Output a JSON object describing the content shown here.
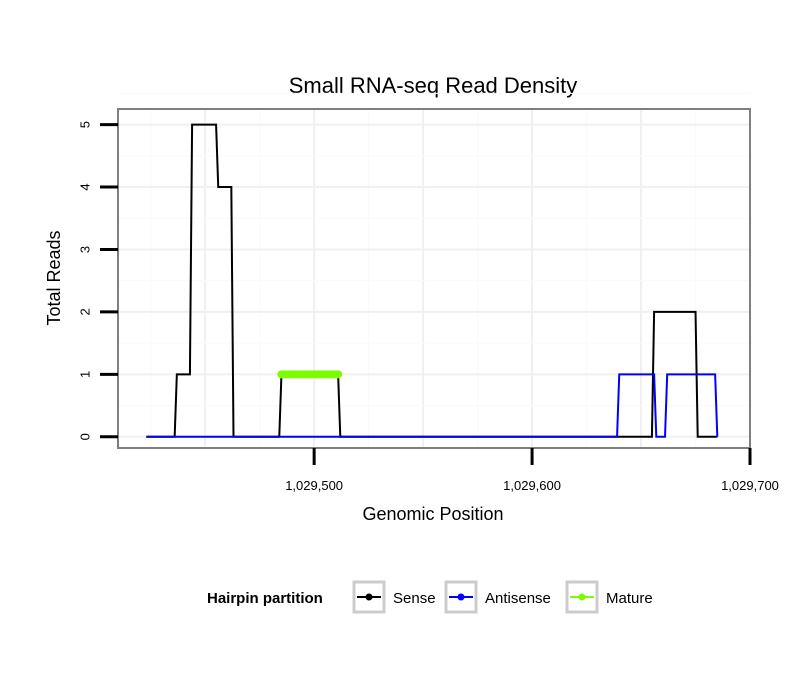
{
  "chart_data": {
    "type": "line",
    "title": "Small RNA-seq Read Density",
    "xlabel": "Genomic Position",
    "ylabel": "Total Reads",
    "xlim": [
      1029410,
      1029700
    ],
    "ylim": [
      -0.18,
      5.25
    ],
    "x_ticks": [
      1029500,
      1029600,
      1029700
    ],
    "x_tick_labels": [
      "1,029,500",
      "1,029,600",
      "1,029,700"
    ],
    "y_ticks": [
      0,
      1,
      2,
      3,
      4,
      5
    ],
    "y_tick_labels": [
      "0",
      "1",
      "2",
      "3",
      "4",
      "5"
    ],
    "grid": true,
    "legend": {
      "title": "Hairpin partition",
      "placement": "bottom",
      "entries": [
        "Sense",
        "Antisense",
        "Mature"
      ]
    },
    "series": [
      {
        "name": "Sense",
        "color": "#000000",
        "markers": false,
        "points": [
          [
            1029423,
            0
          ],
          [
            1029436,
            0
          ],
          [
            1029437,
            1
          ],
          [
            1029443,
            1
          ],
          [
            1029444,
            5
          ],
          [
            1029455,
            5
          ],
          [
            1029456,
            4
          ],
          [
            1029462,
            4
          ],
          [
            1029463,
            0
          ],
          [
            1029484,
            0
          ],
          [
            1029485,
            1
          ],
          [
            1029511,
            1
          ],
          [
            1029512,
            0
          ],
          [
            1029655,
            0
          ],
          [
            1029656,
            2
          ],
          [
            1029675,
            2
          ],
          [
            1029676,
            0
          ],
          [
            1029685,
            0
          ]
        ]
      },
      {
        "name": "Antisense",
        "color": "#0000ff",
        "markers": false,
        "points": [
          [
            1029423,
            0
          ],
          [
            1029639,
            0
          ],
          [
            1029640,
            1
          ],
          [
            1029656,
            1
          ],
          [
            1029657,
            0
          ],
          [
            1029661,
            0
          ],
          [
            1029662,
            1
          ],
          [
            1029684,
            1
          ],
          [
            1029685,
            0
          ]
        ]
      },
      {
        "name": "Mature",
        "color": "#7cfc00",
        "markers": true,
        "points": [
          [
            1029485,
            1
          ],
          [
            1029486,
            1
          ],
          [
            1029487,
            1
          ],
          [
            1029488,
            1
          ],
          [
            1029489,
            1
          ],
          [
            1029490,
            1
          ],
          [
            1029491,
            1
          ],
          [
            1029492,
            1
          ],
          [
            1029493,
            1
          ],
          [
            1029494,
            1
          ],
          [
            1029495,
            1
          ],
          [
            1029496,
            1
          ],
          [
            1029497,
            1
          ],
          [
            1029498,
            1
          ],
          [
            1029499,
            1
          ],
          [
            1029500,
            1
          ],
          [
            1029501,
            1
          ],
          [
            1029502,
            1
          ],
          [
            1029503,
            1
          ],
          [
            1029504,
            1
          ],
          [
            1029505,
            1
          ],
          [
            1029506,
            1
          ],
          [
            1029507,
            1
          ],
          [
            1029508,
            1
          ],
          [
            1029509,
            1
          ],
          [
            1029510,
            1
          ],
          [
            1029511,
            1
          ]
        ]
      }
    ]
  }
}
